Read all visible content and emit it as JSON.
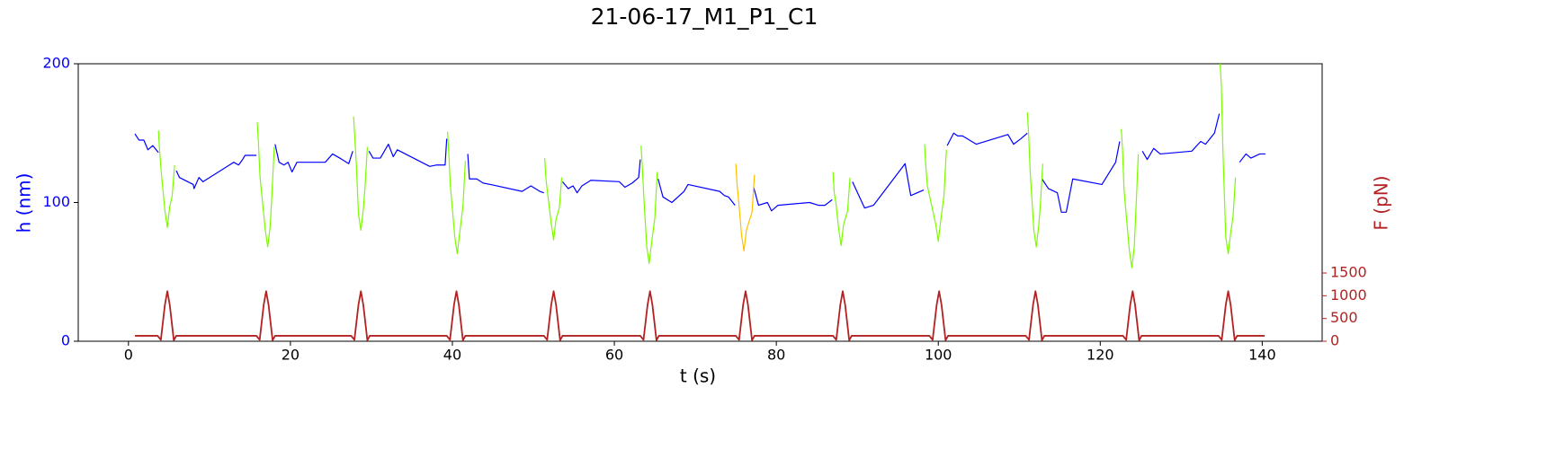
{
  "chart_data": {
    "type": "line",
    "title": "21-06-17_M1_P1_C1",
    "xlabel": "t (s)",
    "ylabel": "h (nm)",
    "y2label": "F (pN)",
    "ycolor": "#0000ff",
    "y2color": "#b22222",
    "xlim": [
      -6.2,
      147.4
    ],
    "xticks": [
      0,
      20,
      40,
      60,
      80,
      100,
      120,
      140
    ],
    "ylim": [
      0,
      200
    ],
    "yticks": [
      0,
      100,
      200
    ],
    "y2lim": [
      0,
      6100
    ],
    "y2ticks": [
      0,
      500,
      1000,
      1500
    ],
    "series": [
      {
        "color": "#0000ff",
        "x": [
          0.8,
          1.3,
          1.9,
          2.4,
          3,
          3.7,
          4.8,
          5.9,
          6.3,
          8,
          8.1,
          8.7,
          9.2,
          13,
          13.6,
          14.1,
          14.4,
          15.8,
          17,
          18.1,
          18.6,
          19.2,
          19.7,
          20.2,
          20.8,
          24.3,
          25.2,
          26.1,
          27.2,
          27.7,
          28.7,
          29.7,
          30.2,
          31.1,
          32.1,
          32.7,
          33.2,
          37.2,
          38,
          39.1,
          39.3,
          40.5,
          41.9,
          42.1,
          43,
          43.8,
          44.7,
          48.6,
          49.7,
          50.8,
          51.3,
          52.5,
          53.6,
          54.3,
          54.9,
          55.4,
          56,
          57.1,
          60.6,
          61.3,
          62.2,
          63,
          63.2,
          64.3,
          65.4,
          66,
          67.1,
          68.6,
          69.1,
          73,
          73.6,
          74.1,
          74.9,
          76,
          77.2,
          77.8,
          78.9,
          79.4,
          80.2,
          84.1,
          85.2,
          86,
          86.9,
          88,
          89.4,
          90.9,
          92,
          95.9,
          96.6,
          98.2,
          100,
          101.1,
          101.9,
          102.4,
          103,
          104.7,
          108.6,
          109.3,
          110.2,
          111,
          112,
          112.8,
          113.6,
          114.7,
          115.2,
          115.8,
          116.6,
          120.2,
          121.9,
          122.4,
          124,
          125.2,
          125.8,
          126.6,
          127.4,
          131.3,
          132.4,
          133,
          134.1,
          134.7,
          136,
          137.2,
          138,
          138.6,
          139.7,
          140.4
        ],
        "values": [
          149.5,
          145,
          145,
          138,
          141,
          136,
          null,
          123,
          118,
          113,
          110,
          118,
          115,
          129,
          127,
          131,
          134,
          134,
          null,
          142,
          129,
          127,
          129,
          122,
          129,
          129,
          135,
          132,
          128,
          137,
          null,
          137,
          132,
          132,
          142,
          133,
          138,
          126,
          127,
          127,
          146,
          null,
          135,
          117,
          117,
          114,
          113,
          108,
          112,
          108,
          107,
          null,
          115,
          110,
          112,
          107,
          112,
          116,
          115,
          111,
          114,
          118,
          131,
          null,
          117,
          104,
          100,
          108,
          113,
          108,
          105,
          104,
          98,
          null,
          111,
          98,
          100,
          94,
          98,
          100,
          98,
          98,
          102,
          null,
          115,
          96,
          98,
          128,
          105,
          109,
          null,
          141,
          150,
          148,
          148,
          142,
          149,
          142,
          146,
          150,
          null,
          117,
          110,
          107,
          93,
          93,
          117,
          113,
          129,
          144,
          null,
          137,
          131,
          139,
          135,
          137,
          144,
          142,
          150,
          164,
          null,
          129,
          135,
          132,
          135,
          135
        ]
      },
      {
        "color": "#7cfc00",
        "x": [
          3.7,
          3.85,
          4.05,
          4.5,
          4.8,
          5.1,
          5.4,
          5.7,
          6,
          15.9,
          16.05,
          16.25,
          16.9,
          17.2,
          17.5,
          17.7,
          18,
          18.3,
          27.8,
          27.95,
          28.15,
          28.4,
          28.7,
          29,
          29.2,
          29.5,
          29.8,
          39.4,
          39.55,
          39.75,
          40.3,
          40.6,
          40.9,
          41.3,
          41.6,
          41.9,
          51.4,
          51.55,
          51.75,
          52.2,
          52.5,
          52.8,
          53.2,
          53.5,
          53.8,
          63.3,
          63.45,
          63.65,
          64,
          64.3,
          64.6,
          65,
          65.3,
          65.6,
          87,
          87.15,
          87.35,
          87.7,
          88,
          88.3,
          88.8,
          89.1,
          89.4,
          98.3,
          98.45,
          98.65,
          99.7,
          100,
          100.3,
          100.7,
          101,
          101.3,
          111,
          111.15,
          111.35,
          111.8,
          112.1,
          112.4,
          112.6,
          112.9,
          113.2,
          122.6,
          122.75,
          122.95,
          123.6,
          123.9,
          124.2,
          124.4,
          124.7,
          125,
          134.8,
          134.95,
          135.15,
          135.5,
          135.8,
          136.1,
          136.4,
          136.7
        ],
        "values": [
          152,
          137,
          122,
          94,
          82,
          97,
          105,
          127,
          null,
          158,
          143,
          118,
          80,
          68,
          83,
          104,
          140,
          null,
          162,
          147,
          126,
          92,
          80,
          95,
          110,
          140,
          null,
          151,
          136,
          112,
          75,
          63,
          78,
          97,
          130,
          null,
          132,
          117,
          107,
          85,
          73,
          88,
          96,
          118,
          null,
          141,
          126,
          103,
          68,
          56,
          71,
          89,
          122,
          null,
          122,
          107,
          100,
          81,
          69,
          84,
          94,
          118,
          null,
          142,
          127,
          112,
          84,
          72,
          87,
          105,
          138,
          null,
          165,
          150,
          122,
          80,
          68,
          83,
          98,
          128,
          null,
          153,
          138,
          108,
          65,
          53,
          68,
          94,
          135,
          null,
          200,
          185,
          137,
          75,
          63,
          78,
          90,
          118
        ]
      },
      {
        "color": "#ffc000",
        "x": [
          75,
          75.15,
          75.35,
          75.7,
          76,
          76.3,
          77,
          77.3
        ],
        "values": [
          128,
          113,
          101,
          77,
          65,
          80,
          93,
          120
        ]
      },
      {
        "color": "#b22222",
        "axis": "y2",
        "x": [
          0.8,
          3.6,
          4,
          4.5,
          4.8,
          5.1,
          5.6,
          5.9,
          15.8,
          16.2,
          16.7,
          17,
          17.3,
          17.8,
          18.1,
          27.5,
          27.9,
          28.4,
          28.7,
          29,
          29.5,
          29.8,
          39.3,
          39.7,
          40.2,
          40.5,
          40.8,
          41.3,
          41.6,
          51.3,
          51.7,
          52.2,
          52.5,
          52.8,
          53.3,
          53.6,
          63.2,
          63.6,
          64.1,
          64.4,
          64.7,
          65.2,
          65.5,
          75,
          75.4,
          75.9,
          76.2,
          76.5,
          77,
          77.3,
          87,
          87.4,
          87.9,
          88.2,
          88.5,
          89,
          89.3,
          98.9,
          99.3,
          99.8,
          100.1,
          100.4,
          100.9,
          101.2,
          110.8,
          111.2,
          111.7,
          112,
          112.3,
          112.8,
          113.1,
          122.8,
          123.2,
          123.7,
          124,
          124.3,
          124.8,
          125.1,
          134.6,
          135,
          135.5,
          135.8,
          136.1,
          136.6,
          136.9,
          140.3
        ],
        "values": [
          120,
          120,
          30,
          800,
          1100,
          800,
          20,
          120,
          120,
          30,
          800,
          1100,
          800,
          20,
          120,
          120,
          30,
          800,
          1100,
          800,
          20,
          120,
          120,
          30,
          800,
          1100,
          800,
          20,
          120,
          120,
          30,
          800,
          1100,
          800,
          20,
          120,
          120,
          30,
          800,
          1100,
          800,
          20,
          120,
          120,
          30,
          800,
          1100,
          800,
          20,
          120,
          120,
          30,
          800,
          1100,
          800,
          20,
          120,
          120,
          30,
          800,
          1100,
          800,
          20,
          120,
          120,
          30,
          800,
          1100,
          800,
          20,
          120,
          120,
          30,
          800,
          1100,
          800,
          20,
          120,
          120,
          30,
          800,
          1100,
          800,
          20,
          120,
          120
        ]
      }
    ]
  }
}
